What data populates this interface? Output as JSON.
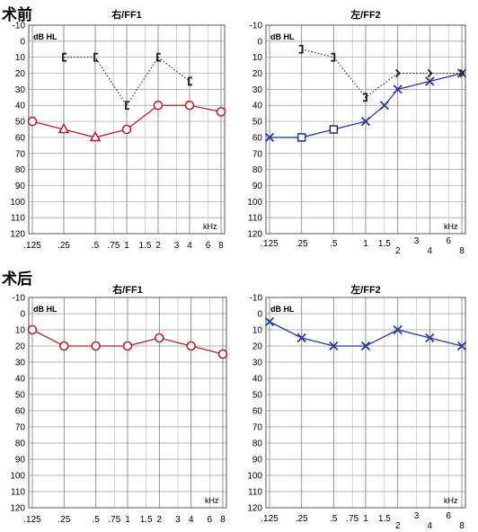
{
  "sections": [
    {
      "title": "术前"
    },
    {
      "title": "术后"
    }
  ],
  "chart_data": [
    {
      "type": "line",
      "title": "右/FF1",
      "unit_label": "dB HL",
      "xunit": "kHz",
      "xticks": [
        ".125",
        ".25",
        ".5",
        ".75",
        "1",
        "1.5",
        "2",
        "3",
        "4",
        "6",
        "8"
      ],
      "yticks": [
        "-10",
        "0",
        "10",
        "20",
        "30",
        "40",
        "50",
        "60",
        "70",
        "80",
        "90",
        "100",
        "110",
        "120"
      ],
      "ylim": [
        -10,
        120
      ],
      "series": [
        {
          "marker": "circle-triangle",
          "color": "#b0242e",
          "points": [
            [
              ".125",
              50,
              "circle"
            ],
            [
              ".25",
              55,
              "triangle"
            ],
            [
              ".5",
              60,
              "triangle"
            ],
            [
              "1",
              55,
              "circle"
            ],
            [
              "2",
              40,
              "circle"
            ],
            [
              "4",
              40,
              "circle"
            ],
            [
              "8",
              44,
              "circle"
            ]
          ]
        },
        {
          "marker": "bracket-right",
          "color": "#222222",
          "dotted": true,
          "points": [
            [
              ".25",
              10
            ],
            [
              ".5",
              10
            ],
            [
              "1",
              40
            ],
            [
              "2",
              10
            ],
            [
              "4",
              25
            ]
          ]
        }
      ]
    },
    {
      "type": "line",
      "title": "左/FF2",
      "unit_label": "dB HL",
      "xunit": "kHz",
      "xticks": [
        ".125",
        ".25",
        ".5",
        "1",
        "1.5",
        "2",
        "3",
        "4",
        "6",
        "8"
      ],
      "yticks": [
        "-10",
        "0",
        "10",
        "20",
        "30",
        "40",
        "50",
        "60",
        "70",
        "80",
        "90",
        "100",
        "110",
        "120"
      ],
      "ylim": [
        -10,
        120
      ],
      "series": [
        {
          "marker": "x-square",
          "color": "#2a3a9a",
          "points": [
            [
              ".125",
              60,
              "x"
            ],
            [
              ".25",
              60,
              "square"
            ],
            [
              ".5",
              55,
              "square"
            ],
            [
              "1",
              50,
              "x"
            ],
            [
              "1.5",
              40,
              "x"
            ],
            [
              "2",
              30,
              "x"
            ],
            [
              "4",
              25,
              "x"
            ],
            [
              "8",
              20,
              "x"
            ]
          ]
        },
        {
          "marker": "bracket-left",
          "color": "#222222",
          "dotted": true,
          "points": [
            [
              ".25",
              5
            ],
            [
              ".5",
              10
            ],
            [
              "1",
              35
            ],
            [
              "2",
              20
            ],
            [
              "4",
              20
            ],
            [
              "8",
              20
            ]
          ]
        }
      ]
    },
    {
      "type": "line",
      "title": "右/FF1",
      "unit_label": "dB HL",
      "xunit": "kHz",
      "xticks": [
        ".125",
        ".25",
        ".5",
        ".75",
        "1",
        "1.5",
        "2",
        "3",
        "4",
        "6",
        "8"
      ],
      "yticks": [
        "-10",
        "0",
        "10",
        "20",
        "30",
        "40",
        "50",
        "60",
        "70",
        "80",
        "90",
        "100",
        "110",
        "120"
      ],
      "ylim": [
        -10,
        120
      ],
      "series": [
        {
          "marker": "circle",
          "color": "#b0242e",
          "points": [
            [
              ".125",
              10
            ],
            [
              ".25",
              20
            ],
            [
              ".5",
              20
            ],
            [
              "1",
              20
            ],
            [
              "2",
              15
            ],
            [
              "4",
              20
            ],
            [
              "8",
              25
            ]
          ]
        }
      ]
    },
    {
      "type": "line",
      "title": "左/FF2",
      "unit_label": "dB HL",
      "xunit": "kHz",
      "xticks": [
        ".125",
        ".25",
        ".5",
        ".75",
        "1",
        "1.5",
        "2",
        "3",
        "4",
        "6",
        "8"
      ],
      "yticks": [
        "-10",
        "0",
        "10",
        "20",
        "30",
        "40",
        "50",
        "60",
        "70",
        "80",
        "90",
        "100",
        "110",
        "120"
      ],
      "ylim": [
        -10,
        120
      ],
      "series": [
        {
          "marker": "x",
          "color": "#2a3a9a",
          "points": [
            [
              ".125",
              5
            ],
            [
              ".25",
              15
            ],
            [
              ".5",
              20
            ],
            [
              "1",
              20
            ],
            [
              "2",
              10
            ],
            [
              "4",
              15
            ],
            [
              "8",
              20
            ]
          ]
        }
      ]
    }
  ]
}
